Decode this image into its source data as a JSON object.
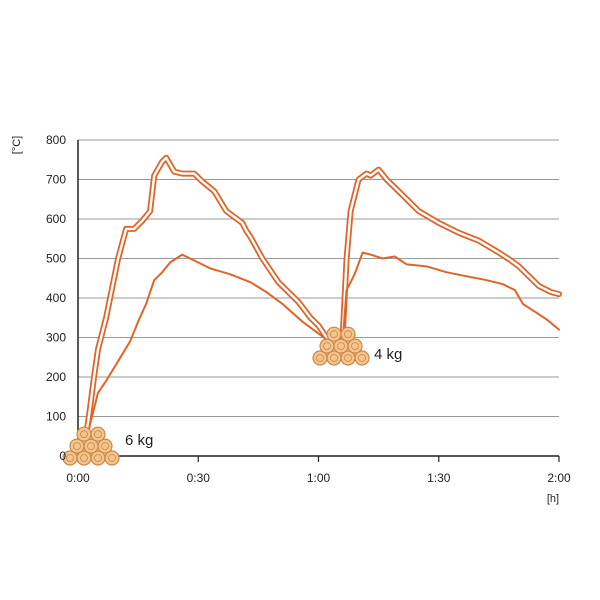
{
  "chart_data": {
    "type": "line",
    "ylabel": "[°C]",
    "xlabel": "[h]",
    "xlim": [
      0,
      120
    ],
    "ylim": [
      0,
      800
    ],
    "grid": true,
    "x_ticks": [
      {
        "value": 0,
        "label": "0:00"
      },
      {
        "value": 30,
        "label": "0:30"
      },
      {
        "value": 60,
        "label": "1:00"
      },
      {
        "value": 90,
        "label": "1:30"
      },
      {
        "value": 120,
        "label": "2:00"
      }
    ],
    "y_ticks": [
      {
        "value": 0,
        "label": "0"
      },
      {
        "value": 100,
        "label": "100"
      },
      {
        "value": 200,
        "label": "200"
      },
      {
        "value": 300,
        "label": "300"
      },
      {
        "value": 400,
        "label": "400"
      },
      {
        "value": 500,
        "label": "500"
      },
      {
        "value": 600,
        "label": "600"
      },
      {
        "value": 700,
        "label": "700"
      },
      {
        "value": 800,
        "label": "800"
      }
    ],
    "colors": {
      "series": "#e0642a",
      "grid": "#9a9a9a",
      "axis": "#222222",
      "wood": "#f4c48c",
      "wood_ring": "#c8874a"
    },
    "annotations": [
      {
        "label": "6 kg",
        "x": 4,
        "y": 30
      },
      {
        "label": "4 kg",
        "x": 65,
        "y": 300
      }
    ],
    "series": [
      {
        "style": "double",
        "x": [
          2,
          3,
          4,
          5,
          7,
          10,
          12,
          14,
          16,
          18,
          19,
          21,
          22,
          24,
          26,
          29,
          31,
          34,
          37,
          39,
          41,
          42,
          43,
          46,
          50,
          55,
          58,
          60,
          62
        ],
        "y": [
          50,
          120,
          200,
          270,
          350,
          500,
          575,
          575,
          595,
          620,
          710,
          745,
          755,
          720,
          715,
          715,
          695,
          670,
          620,
          605,
          590,
          570,
          555,
          500,
          440,
          390,
          350,
          330,
          300
        ],
        "x2": [
          66,
          67,
          68,
          70,
          72,
          73,
          75,
          77,
          80,
          85,
          90,
          95,
          100,
          105,
          108,
          110,
          112,
          115,
          118,
          120
        ],
        "y2": [
          300,
          500,
          620,
          700,
          715,
          710,
          725,
          700,
          670,
          620,
          590,
          565,
          545,
          515,
          495,
          480,
          460,
          430,
          415,
          410
        ]
      },
      {
        "style": "single",
        "x": [
          2,
          3,
          4,
          5,
          7,
          10,
          13,
          15,
          17,
          19,
          21,
          23,
          26,
          29,
          33,
          38,
          43,
          47,
          51,
          56,
          60,
          62
        ],
        "y": [
          30,
          80,
          120,
          160,
          190,
          240,
          290,
          340,
          385,
          445,
          465,
          490,
          510,
          495,
          475,
          460,
          440,
          415,
          385,
          340,
          310,
          295
        ],
        "x2": [
          66,
          67,
          69,
          71,
          73,
          76,
          79,
          82,
          87,
          92,
          97,
          102,
          106,
          109,
          111,
          114,
          117,
          120
        ],
        "y2": [
          290,
          420,
          460,
          515,
          510,
          500,
          505,
          485,
          480,
          465,
          455,
          445,
          435,
          420,
          385,
          365,
          345,
          320
        ]
      }
    ]
  }
}
